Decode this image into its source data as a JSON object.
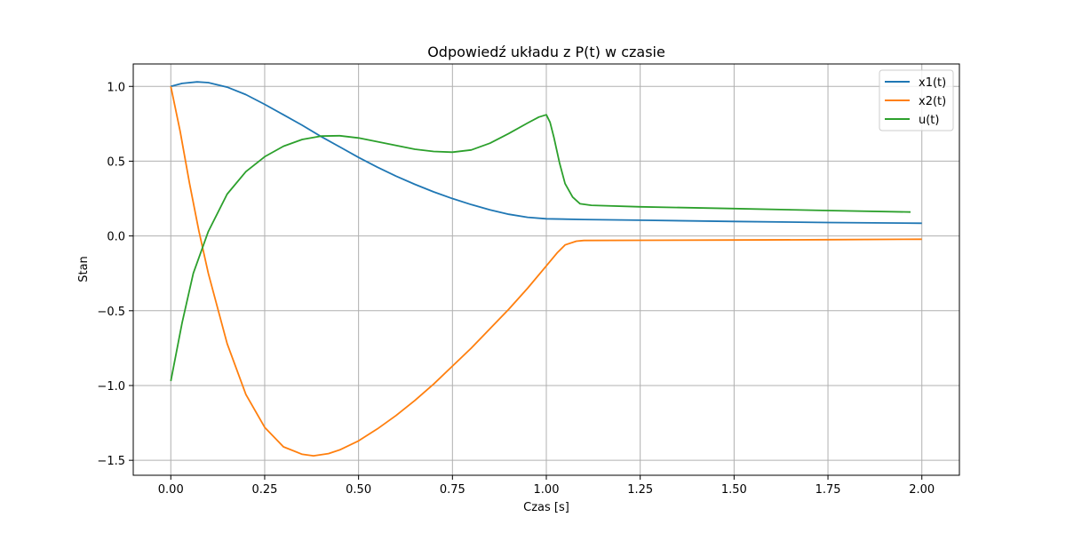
{
  "chart_data": {
    "type": "line",
    "title": "Odpowiedź układu z P(t) w czasie",
    "xlabel": "Czas [s]",
    "ylabel": "Stan",
    "xlim": [
      -0.1,
      2.1
    ],
    "ylim": [
      -1.6,
      1.15
    ],
    "xticks": [
      0.0,
      0.25,
      0.5,
      0.75,
      1.0,
      1.25,
      1.5,
      1.75,
      2.0
    ],
    "xtick_labels": [
      "0.00",
      "0.25",
      "0.50",
      "0.75",
      "1.00",
      "1.25",
      "1.50",
      "1.75",
      "2.00"
    ],
    "yticks": [
      1.0,
      0.5,
      0.0,
      -0.5,
      -1.0,
      -1.5
    ],
    "ytick_labels": [
      "1.0",
      "0.5",
      "0.0",
      "−0.5",
      "−1.0",
      "−1.5"
    ],
    "grid": true,
    "legend_position": "top-right",
    "series": [
      {
        "name": "x1(t)",
        "color": "#1f77b4",
        "x": [
          0.0,
          0.03,
          0.07,
          0.1,
          0.15,
          0.2,
          0.25,
          0.3,
          0.35,
          0.4,
          0.45,
          0.5,
          0.55,
          0.6,
          0.65,
          0.7,
          0.75,
          0.8,
          0.85,
          0.9,
          0.95,
          1.0,
          1.1,
          1.25,
          1.5,
          1.75,
          2.0
        ],
        "y": [
          1.0,
          1.02,
          1.03,
          1.025,
          0.995,
          0.945,
          0.88,
          0.81,
          0.74,
          0.665,
          0.595,
          0.525,
          0.46,
          0.4,
          0.345,
          0.295,
          0.25,
          0.21,
          0.175,
          0.145,
          0.125,
          0.115,
          0.11,
          0.105,
          0.097,
          0.09,
          0.085
        ]
      },
      {
        "name": "x2(t)",
        "color": "#ff7f0e",
        "x": [
          0.0,
          0.025,
          0.05,
          0.075,
          0.1,
          0.15,
          0.2,
          0.25,
          0.3,
          0.35,
          0.38,
          0.42,
          0.45,
          0.5,
          0.55,
          0.6,
          0.65,
          0.7,
          0.75,
          0.8,
          0.85,
          0.9,
          0.95,
          1.0,
          1.03,
          1.05,
          1.08,
          1.1,
          1.25,
          1.5,
          1.75,
          2.0
        ],
        "y": [
          1.0,
          0.7,
          0.35,
          0.03,
          -0.25,
          -0.72,
          -1.06,
          -1.28,
          -1.41,
          -1.46,
          -1.47,
          -1.455,
          -1.43,
          -1.37,
          -1.29,
          -1.2,
          -1.1,
          -0.99,
          -0.87,
          -0.75,
          -0.62,
          -0.49,
          -0.35,
          -0.2,
          -0.11,
          -0.06,
          -0.035,
          -0.03,
          -0.029,
          -0.027,
          -0.025,
          -0.022
        ]
      },
      {
        "name": "u(t)",
        "color": "#2ca02c",
        "x": [
          0.0,
          0.03,
          0.06,
          0.1,
          0.15,
          0.2,
          0.25,
          0.3,
          0.35,
          0.4,
          0.45,
          0.5,
          0.55,
          0.6,
          0.65,
          0.7,
          0.75,
          0.8,
          0.85,
          0.9,
          0.95,
          0.98,
          1.0,
          1.01,
          1.02,
          1.035,
          1.05,
          1.07,
          1.09,
          1.12,
          1.25,
          1.5,
          1.75,
          1.97
        ],
        "y": [
          -0.97,
          -0.58,
          -0.25,
          0.03,
          0.28,
          0.43,
          0.53,
          0.6,
          0.645,
          0.668,
          0.67,
          0.655,
          0.63,
          0.605,
          0.58,
          0.565,
          0.56,
          0.575,
          0.62,
          0.685,
          0.755,
          0.795,
          0.81,
          0.76,
          0.66,
          0.49,
          0.35,
          0.26,
          0.215,
          0.205,
          0.195,
          0.183,
          0.17,
          0.16
        ]
      }
    ]
  }
}
